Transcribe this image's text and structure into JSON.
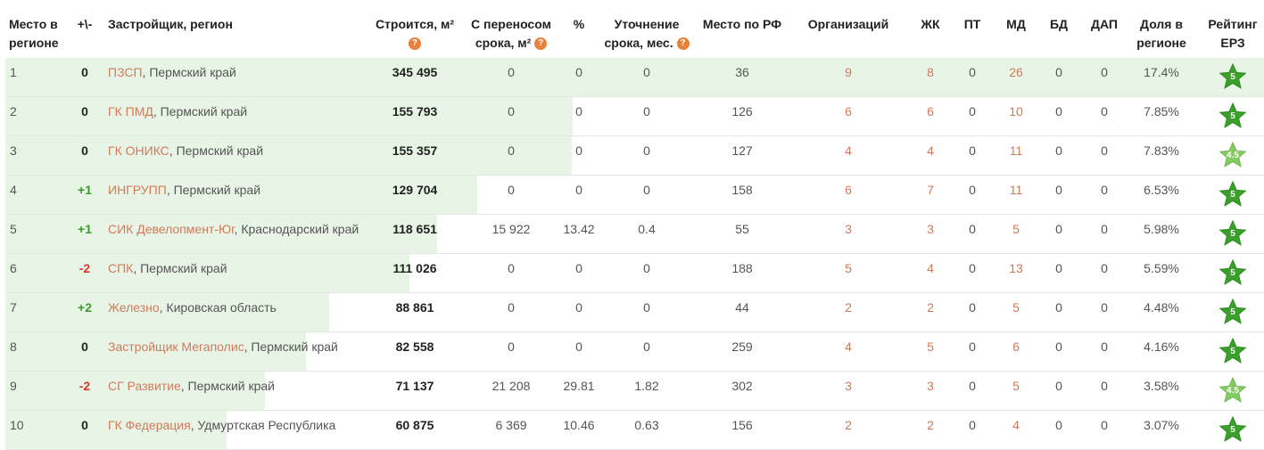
{
  "headers": {
    "place_region": "Место в регионе",
    "change": "+\\-",
    "developer": "Застройщик, регион",
    "built": "Строится, м²",
    "postponed": "С переносом срока, м²",
    "percent": "%",
    "refine": "Уточнение срока, мес.",
    "place_rf": "Место по РФ",
    "orgs": "Организаций",
    "zhk": "ЖК",
    "pt": "ПТ",
    "md": "МД",
    "bd": "БД",
    "dap": "ДАП",
    "share": "Доля в регионе",
    "rating": "Рейтинг ЕРЗ",
    "help_glyph": "?"
  },
  "colors": {
    "bar": "#e8f5e6",
    "link": "#d07a5a",
    "positive": "#3a9a2a",
    "negative": "#d43a2c",
    "star_full": "#3aa02a",
    "star_light": "#84cc62",
    "help_icon": "#e8803a"
  },
  "rows": [
    {
      "place": "1",
      "change": "0",
      "change_type": "zero",
      "developer": "ПЗСП",
      "region": ", Пермский край",
      "built": "345 495",
      "postponed": "0",
      "percent": "0",
      "refine": "0",
      "place_rf": "36",
      "orgs": "9",
      "zhk": "8",
      "pt": "0",
      "md": "26",
      "bd": "0",
      "dap": "0",
      "share": "17.4%",
      "rating": "5",
      "share_fraction": 1.0
    },
    {
      "place": "2",
      "change": "0",
      "change_type": "zero",
      "developer": "ГК ПМД",
      "region": ", Пермский край",
      "built": "155 793",
      "postponed": "0",
      "percent": "0",
      "refine": "0",
      "place_rf": "126",
      "orgs": "6",
      "zhk": "6",
      "pt": "0",
      "md": "10",
      "bd": "0",
      "dap": "0",
      "share": "7.85%",
      "rating": "5",
      "share_fraction": 0.451
    },
    {
      "place": "3",
      "change": "0",
      "change_type": "zero",
      "developer": "ГК ОНИКС",
      "region": ", Пермский край",
      "built": "155 357",
      "postponed": "0",
      "percent": "0",
      "refine": "0",
      "place_rf": "127",
      "orgs": "4",
      "zhk": "4",
      "pt": "0",
      "md": "11",
      "bd": "0",
      "dap": "0",
      "share": "7.83%",
      "rating": "4.5",
      "share_fraction": 0.45
    },
    {
      "place": "4",
      "change": "+1",
      "change_type": "pos",
      "developer": "ИНГРУПП",
      "region": ", Пермский край",
      "built": "129 704",
      "postponed": "0",
      "percent": "0",
      "refine": "0",
      "place_rf": "158",
      "orgs": "6",
      "zhk": "7",
      "pt": "0",
      "md": "11",
      "bd": "0",
      "dap": "0",
      "share": "6.53%",
      "rating": "5",
      "share_fraction": 0.375
    },
    {
      "place": "5",
      "change": "+1",
      "change_type": "pos",
      "developer": "СИК Девелопмент-Юг",
      "region": ", Краснодарский край",
      "built": "118 651",
      "postponed": "15 922",
      "percent": "13.42",
      "refine": "0.4",
      "place_rf": "55",
      "orgs": "3",
      "zhk": "3",
      "pt": "0",
      "md": "5",
      "bd": "0",
      "dap": "0",
      "share": "5.98%",
      "rating": "5",
      "share_fraction": 0.343
    },
    {
      "place": "6",
      "change": "-2",
      "change_type": "neg",
      "developer": "СПК",
      "region": ", Пермский край",
      "built": "111 026",
      "postponed": "0",
      "percent": "0",
      "refine": "0",
      "place_rf": "188",
      "orgs": "5",
      "zhk": "4",
      "pt": "0",
      "md": "13",
      "bd": "0",
      "dap": "0",
      "share": "5.59%",
      "rating": "5",
      "share_fraction": 0.321
    },
    {
      "place": "7",
      "change": "+2",
      "change_type": "pos",
      "developer": "Железно",
      "region": ", Кировская область",
      "built": "88 861",
      "postponed": "0",
      "percent": "0",
      "refine": "0",
      "place_rf": "44",
      "orgs": "2",
      "zhk": "2",
      "pt": "0",
      "md": "5",
      "bd": "0",
      "dap": "0",
      "share": "4.48%",
      "rating": "5",
      "share_fraction": 0.257
    },
    {
      "place": "8",
      "change": "0",
      "change_type": "zero",
      "developer": "Застройщик Мегаполис",
      "region": ", Пермский край",
      "built": "82 558",
      "postponed": "0",
      "percent": "0",
      "refine": "0",
      "place_rf": "259",
      "orgs": "4",
      "zhk": "5",
      "pt": "0",
      "md": "6",
      "bd": "0",
      "dap": "0",
      "share": "4.16%",
      "rating": "5",
      "share_fraction": 0.239
    },
    {
      "place": "9",
      "change": "-2",
      "change_type": "neg",
      "developer": "СГ Развитие",
      "region": ", Пермский край",
      "built": "71 137",
      "postponed": "21 208",
      "percent": "29.81",
      "refine": "1.82",
      "place_rf": "302",
      "orgs": "3",
      "zhk": "3",
      "pt": "0",
      "md": "5",
      "bd": "0",
      "dap": "0",
      "share": "3.58%",
      "rating": "4.5",
      "share_fraction": 0.206
    },
    {
      "place": "10",
      "change": "0",
      "change_type": "zero",
      "developer": "ГК Федерация",
      "region": ", Удмуртская Республика",
      "built": "60 875",
      "postponed": "6 369",
      "percent": "10.46",
      "refine": "0.63",
      "place_rf": "156",
      "orgs": "2",
      "zhk": "2",
      "pt": "0",
      "md": "4",
      "bd": "0",
      "dap": "0",
      "share": "3.07%",
      "rating": "5",
      "share_fraction": 0.176
    }
  ]
}
